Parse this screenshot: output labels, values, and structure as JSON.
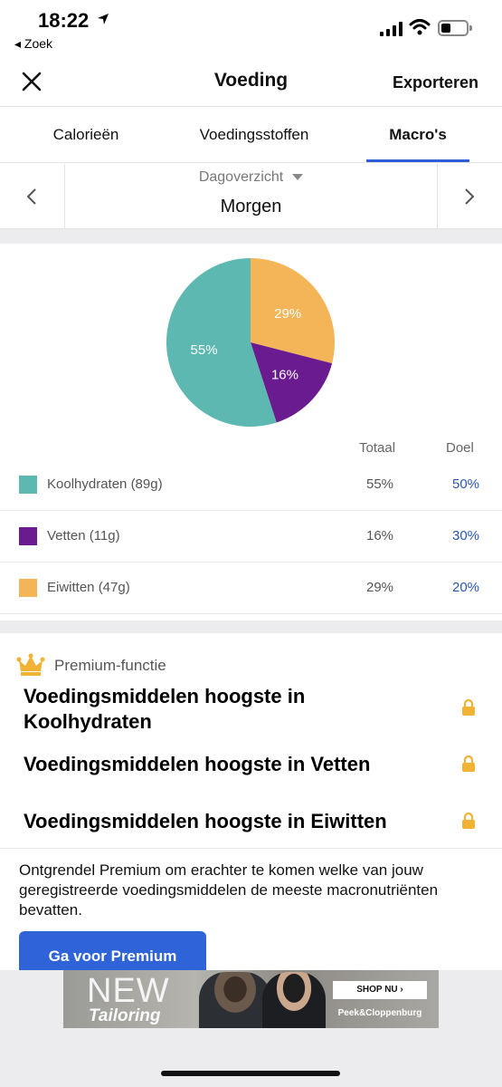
{
  "status_bar": {
    "time": "18:22",
    "back_app": "◂ Zoek"
  },
  "nav": {
    "title": "Voeding",
    "export_label": "Exporteren"
  },
  "tabs": [
    {
      "label": "Calorieën",
      "active": false
    },
    {
      "label": "Voedingsstoffen",
      "active": false
    },
    {
      "label": "Macro's",
      "active": true
    }
  ],
  "period": {
    "view_label": "Dagoverzicht",
    "day_label": "Morgen"
  },
  "chart_data": {
    "type": "pie",
    "slices": [
      {
        "label": "Eiwitten",
        "percent_label": "29%",
        "value": 29,
        "color": "#f3b557"
      },
      {
        "label": "Vetten",
        "percent_label": "16%",
        "value": 16,
        "color": "#6a1b8f"
      },
      {
        "label": "Koolhydraten",
        "percent_label": "55%",
        "value": 55,
        "color": "#5cb8b0"
      }
    ]
  },
  "macros": {
    "header_total": "Totaal",
    "header_goal": "Doel",
    "rows": [
      {
        "name": "Koolhydraten (89g)",
        "total": "55%",
        "goal": "50%",
        "color": "#5cb8b0"
      },
      {
        "name": "Vetten (11g)",
        "total": "16%",
        "goal": "30%",
        "color": "#6a1b8f"
      },
      {
        "name": "Eiwitten (47g)",
        "total": "29%",
        "goal": "20%",
        "color": "#f3b557"
      }
    ]
  },
  "premium": {
    "label": "Premium-functie",
    "items": [
      {
        "text": "Voedingsmiddelen hoogste in Koolhydraten"
      },
      {
        "text": "Voedingsmiddelen hoogste in Vetten"
      },
      {
        "text": "Voedingsmiddelen hoogste in Eiwitten"
      }
    ],
    "description": "Ontgrendel Premium om erachter te komen welke van jouw geregistreerde voedingsmiddelen de meeste macronutriënten bevatten.",
    "button_label": "Ga voor Premium"
  },
  "ad": {
    "headline": "NEW",
    "subline": "Tailoring",
    "cta": "SHOP NU ›",
    "brand": "Peek&Cloppenburg"
  },
  "colors": {
    "accent": "#2f63d8",
    "goal_text": "#2a56b5",
    "lock": "#f2b233",
    "crown": "#f2b233"
  }
}
